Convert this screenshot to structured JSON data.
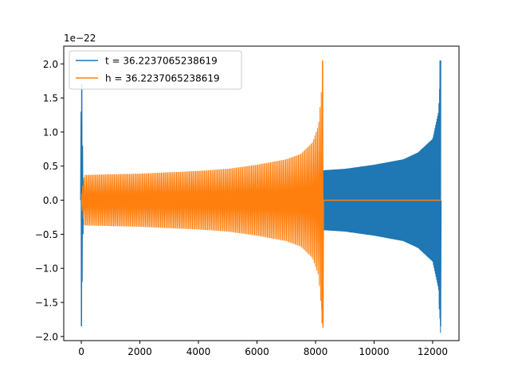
{
  "chart_data": {
    "type": "line",
    "title": "",
    "xlabel": "",
    "ylabel": "",
    "y_offset_label": "1e−22",
    "xlim": [
      -600,
      12900
    ],
    "ylim": [
      -2.06,
      2.26
    ],
    "xticks": [
      0,
      2000,
      4000,
      6000,
      8000,
      10000,
      12000
    ],
    "xtick_labels": [
      "0",
      "2000",
      "4000",
      "6000",
      "8000",
      "10000",
      "12000"
    ],
    "yticks": [
      -2.0,
      -1.5,
      -1.0,
      -0.5,
      0.0,
      0.5,
      1.0,
      1.5,
      2.0
    ],
    "ytick_labels": [
      "−2.0",
      "−1.5",
      "−1.0",
      "−0.5",
      "0.0",
      "0.5",
      "1.0",
      "1.5",
      "2.0"
    ],
    "grid": false,
    "legend_position": "upper-left",
    "series": [
      {
        "name": "t = 36.2237065238619",
        "color": "#1f77b4",
        "description_points": {
          "x": [
            0,
            60,
            120,
            2000,
            4000,
            6000,
            8000,
            8270,
            9000,
            10000,
            11000,
            11500,
            12000,
            12200,
            12280
          ],
          "envelope": [
            1.75,
            0.3,
            0.05,
            0.0,
            0.0,
            0.0,
            0.0,
            0.44,
            0.46,
            0.52,
            0.6,
            0.7,
            0.9,
            1.3,
            2.05
          ]
        }
      },
      {
        "name": "h = 36.2237065238619",
        "color": "#ff7f0e",
        "description_points": {
          "x": [
            0,
            100,
            1000,
            2000,
            3000,
            4000,
            5000,
            6000,
            7000,
            7500,
            7900,
            8100,
            8200,
            8240,
            8270
          ],
          "envelope": [
            0.1,
            0.37,
            0.38,
            0.39,
            0.41,
            0.43,
            0.46,
            0.52,
            0.6,
            0.68,
            0.85,
            1.1,
            1.6,
            2.05,
            0.0
          ]
        }
      }
    ]
  }
}
